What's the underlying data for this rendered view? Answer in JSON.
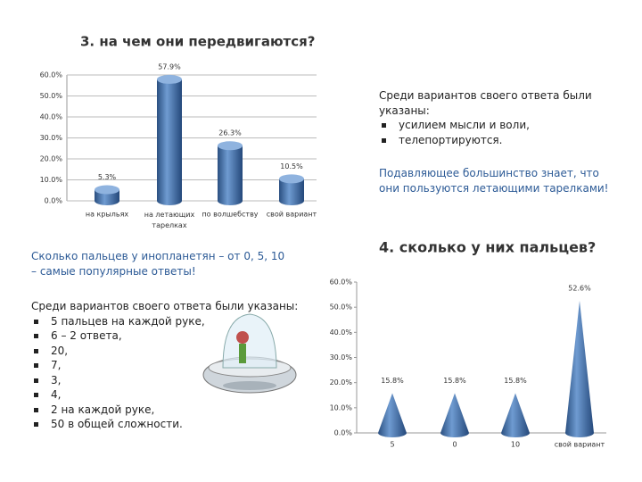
{
  "chart_data": [
    {
      "type": "cylinder",
      "title": "3. на чем они передвигаются?",
      "categories": [
        "на крыльях",
        "на летающих тарелках",
        "по волшебству",
        "свой вариант"
      ],
      "values": [
        5.3,
        57.9,
        26.3,
        10.5
      ],
      "value_labels": [
        "5.3%",
        "57.9%",
        "26.3%",
        "10.5%"
      ],
      "color": "#4f81bd",
      "ylim": [
        0,
        60
      ],
      "yticks": [
        {
          "value": 0,
          "label": "0.0%"
        },
        {
          "value": 10,
          "label": "10.0%"
        },
        {
          "value": 20,
          "label": "20.0%"
        },
        {
          "value": 30,
          "label": "30.0%"
        },
        {
          "value": 40,
          "label": "40.0%"
        },
        {
          "value": 50,
          "label": "50.0%"
        },
        {
          "value": 60,
          "label": "60.0%"
        }
      ],
      "grid": true
    },
    {
      "type": "cone",
      "title": "4. сколько у них пальцев?",
      "categories": [
        "5",
        "0",
        "10",
        "свой вариант"
      ],
      "values": [
        15.8,
        15.8,
        15.8,
        52.6
      ],
      "value_labels": [
        "15.8%",
        "15.8%",
        "15.8%",
        "52.6%"
      ],
      "color": "#4f81bd",
      "ylim": [
        0,
        60
      ],
      "yticks": [
        {
          "value": 0,
          "label": "0.0%"
        },
        {
          "value": 10,
          "label": "10.0%"
        },
        {
          "value": 20,
          "label": "20.0%"
        },
        {
          "value": 30,
          "label": "30.0%"
        },
        {
          "value": 40,
          "label": "40.0%"
        },
        {
          "value": 50,
          "label": "50.0%"
        },
        {
          "value": 60,
          "label": "60.0%"
        }
      ],
      "grid": false
    }
  ],
  "notes": [
    {
      "text": "Среди вариантов своего ответа были указаны:",
      "items": [
        "усилием мысли и воли,",
        "телепортируются."
      ]
    },
    {
      "text": "Подавляющее большинство знает, что они пользуются летающими тарелками!",
      "items": []
    },
    {
      "text": "Сколько пальцев у инопланетян – от 0, 5, 10 – самые популярные ответы!",
      "items": []
    },
    {
      "text": "Среди вариантов своего ответа были указаны:",
      "items": [
        "5 пальцев на каждой руке,",
        "6 – 2 ответа,",
        "20,",
        "7,",
        "3,",
        "4,",
        "2 на каждой руке,",
        "50 в общей сложности."
      ]
    }
  ]
}
